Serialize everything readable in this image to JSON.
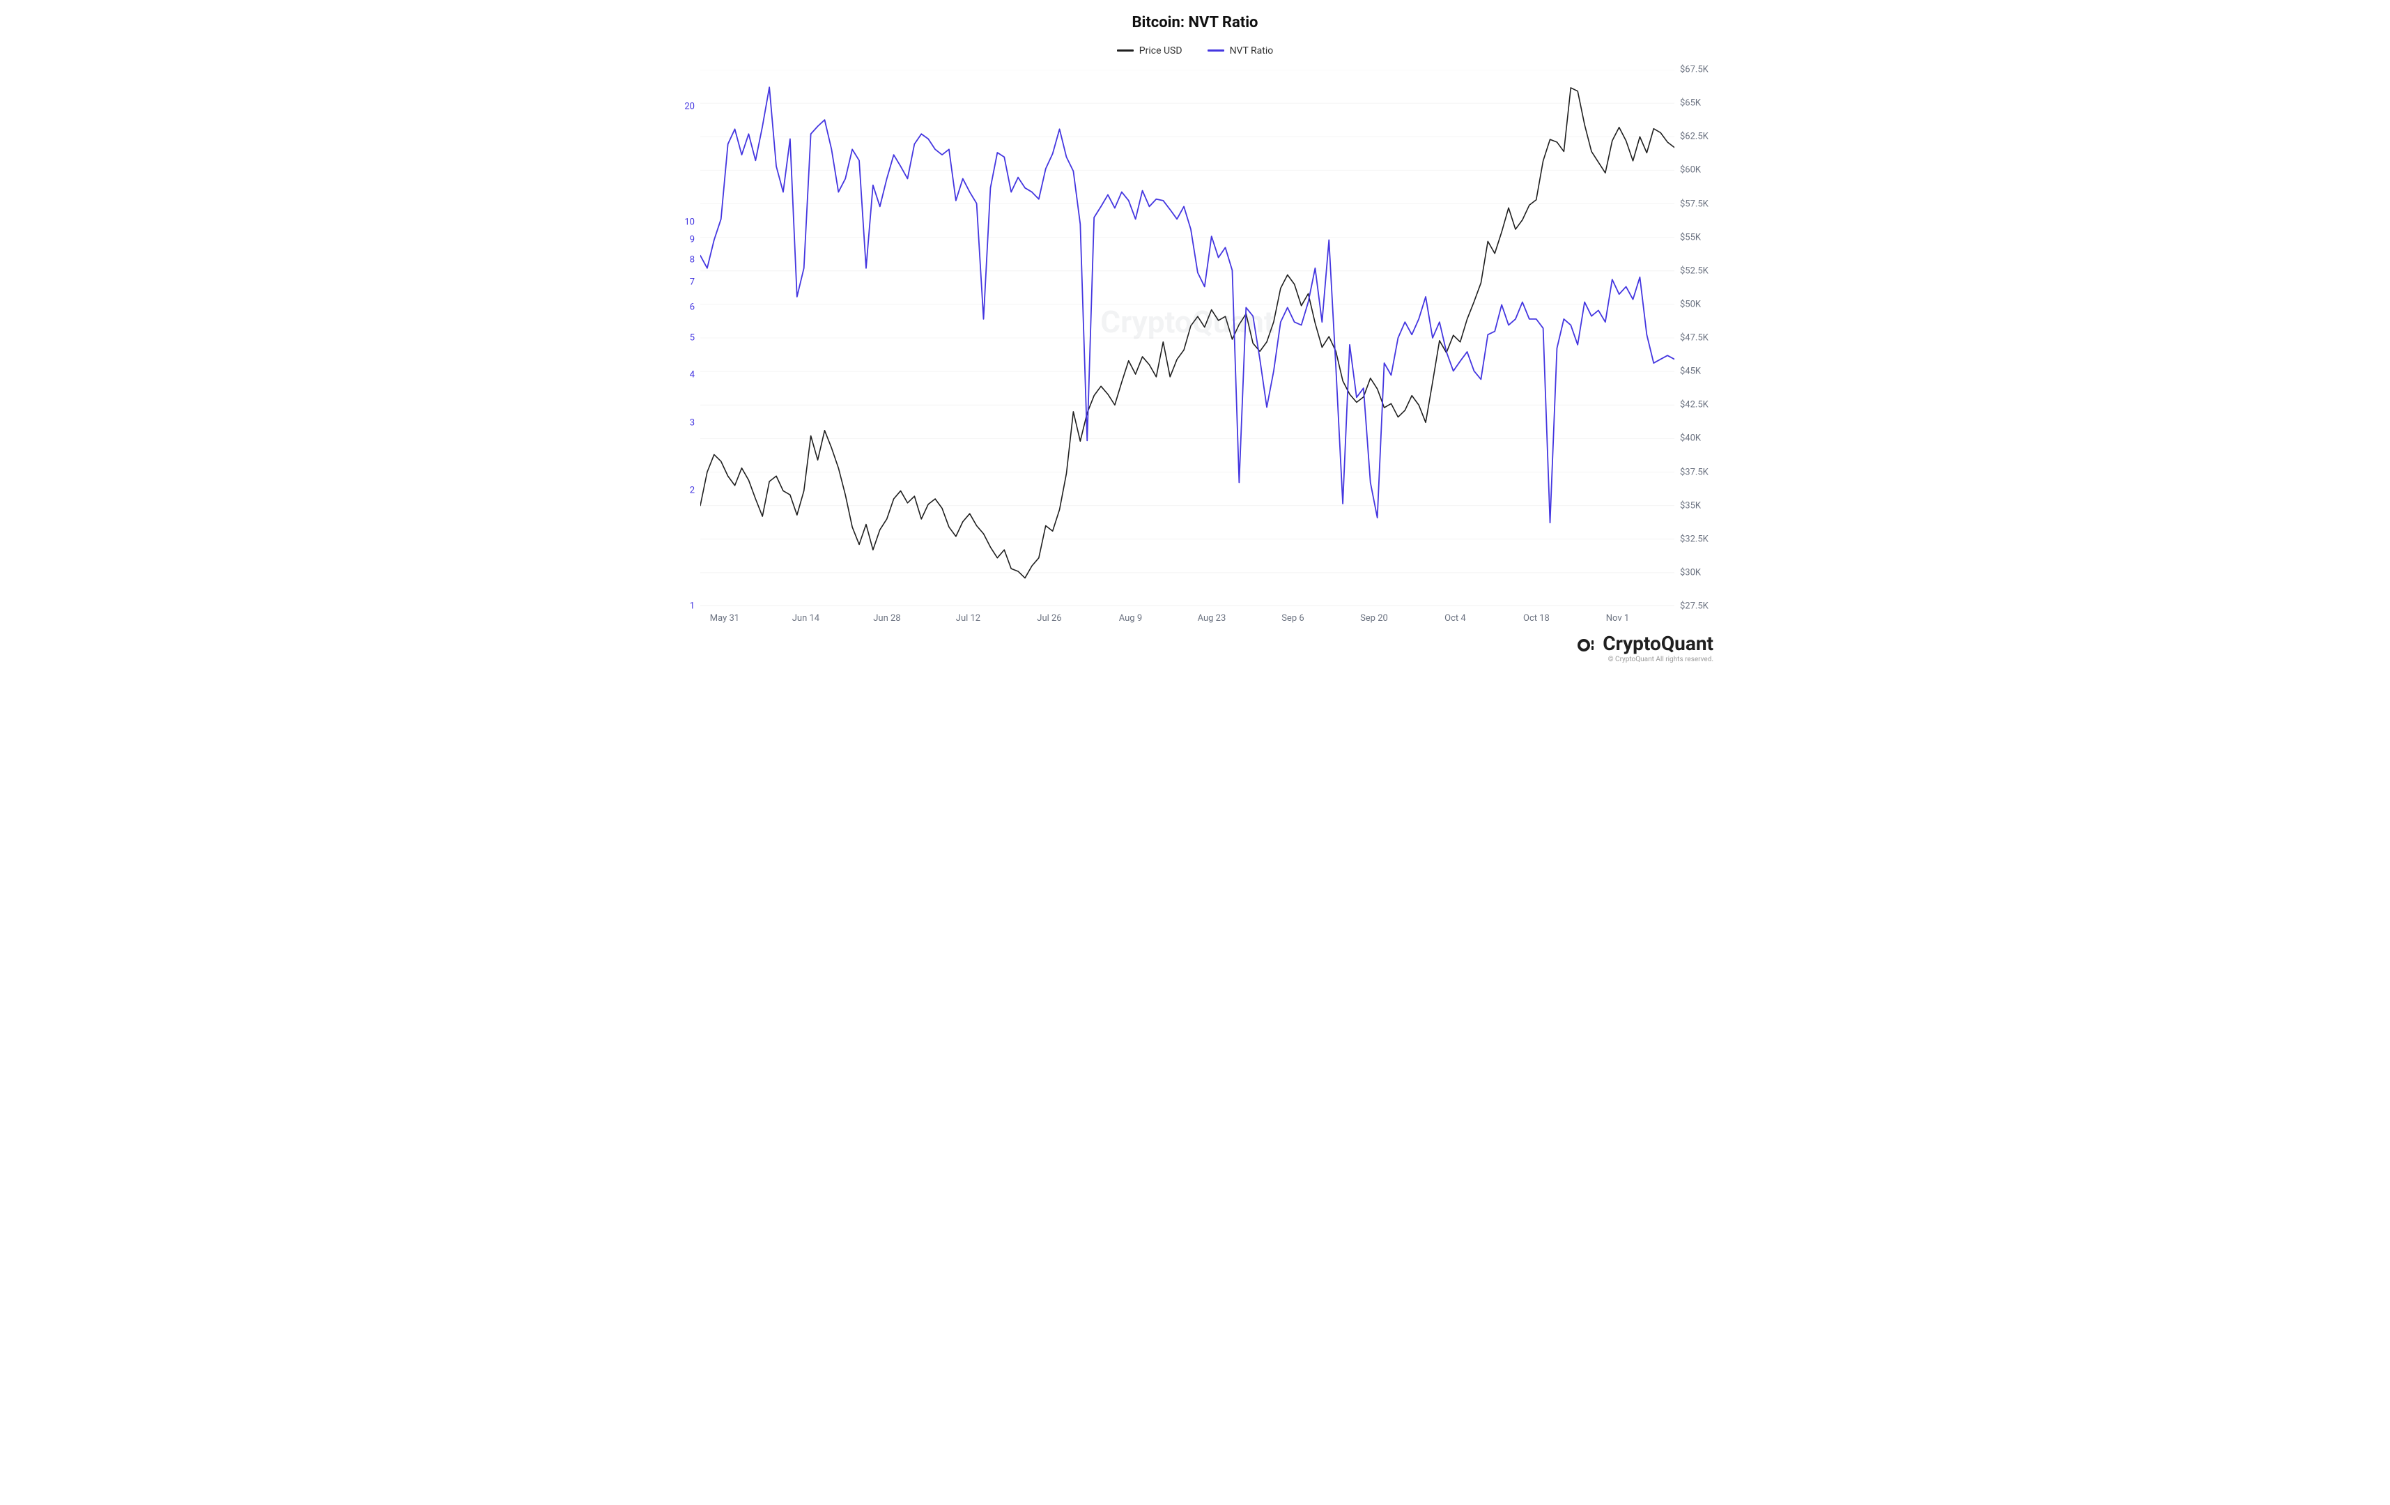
{
  "chart": {
    "title": "Bitcoin: NVT Ratio",
    "title_fontsize": 22,
    "background_color": "#ffffff",
    "grid_color": "#f4f4f4",
    "watermark_text": "CryptoQuant",
    "legend_fontsize": 14,
    "x_axis": {
      "labels": [
        "May 31",
        "Jun 14",
        "Jun 28",
        "Jul 12",
        "Jul 26",
        "Aug 9",
        "Aug 23",
        "Sep 6",
        "Sep 20",
        "Oct 4",
        "Oct 18",
        "Nov 1"
      ],
      "label_color": "#6b7280",
      "fontsize": 13
    },
    "y_left": {
      "scale": "log",
      "min": 1,
      "max": 25,
      "ticks": [
        1,
        2,
        3,
        4,
        5,
        6,
        7,
        8,
        9,
        10,
        20
      ],
      "tick_labels": [
        "1",
        "2",
        "3",
        "4",
        "5",
        "6",
        "7",
        "8",
        "9",
        "10",
        "20"
      ],
      "color": "#4436e0",
      "fontsize": 13
    },
    "y_right": {
      "scale": "linear",
      "min": 27500,
      "max": 67500,
      "ticks": [
        27500,
        30000,
        32500,
        35000,
        37500,
        40000,
        42500,
        45000,
        47500,
        50000,
        52500,
        55000,
        57500,
        60000,
        62500,
        65000,
        67500
      ],
      "tick_labels": [
        "$27.5K",
        "$30K",
        "$32.5K",
        "$35K",
        "$37.5K",
        "$40K",
        "$42.5K",
        "$45K",
        "$47.5K",
        "$50K",
        "$52.5K",
        "$55K",
        "$57.5K",
        "$60K",
        "$62.5K",
        "$65K",
        "$67.5K"
      ],
      "color": "#6b7280",
      "fontsize": 13
    },
    "series": [
      {
        "name": "Price USD",
        "axis": "right",
        "color": "#1f1f1f",
        "line_width": 1.6,
        "values": [
          35000,
          37500,
          38800,
          38300,
          37200,
          36500,
          37800,
          36900,
          35500,
          34200,
          36800,
          37200,
          36100,
          35800,
          34300,
          36100,
          40200,
          38400,
          40600,
          39300,
          37800,
          35800,
          33400,
          32100,
          33600,
          31700,
          33200,
          34000,
          35500,
          36100,
          35200,
          35700,
          34000,
          35100,
          35500,
          34800,
          33400,
          32700,
          33800,
          34400,
          33500,
          32900,
          31900,
          31100,
          31700,
          30300,
          30100,
          29600,
          30500,
          31100,
          33500,
          33100,
          34700,
          37400,
          42000,
          39800,
          41900,
          43200,
          43900,
          43300,
          42500,
          44200,
          45800,
          44800,
          46100,
          45500,
          44600,
          47200,
          44600,
          45900,
          46600,
          48400,
          49100,
          48300,
          49600,
          48800,
          49100,
          47400,
          48500,
          49300,
          47100,
          46500,
          47200,
          48700,
          51200,
          52200,
          51500,
          49900,
          50800,
          48600,
          46800,
          47600,
          46500,
          44300,
          43300,
          42700,
          43100,
          44500,
          43700,
          42300,
          42600,
          41600,
          42100,
          43200,
          42500,
          41200,
          44200,
          47300,
          46400,
          47700,
          47200,
          48900,
          50200,
          51600,
          54700,
          53800,
          55400,
          57200,
          55600,
          56300,
          57400,
          57800,
          60700,
          62300,
          62100,
          61400,
          66150,
          65900,
          63400,
          61400,
          60600,
          59800,
          62200,
          63200,
          62200,
          60700,
          62500,
          61300,
          63100,
          62800,
          62100,
          61700
        ]
      },
      {
        "name": "NVT Ratio",
        "axis": "left",
        "color": "#4436e0",
        "line_width": 1.8,
        "values": [
          8.2,
          7.6,
          9.0,
          10.2,
          16.0,
          17.5,
          15.0,
          17.0,
          14.5,
          17.8,
          22.5,
          14.0,
          12.0,
          16.5,
          6.4,
          7.6,
          17.0,
          17.8,
          18.5,
          15.5,
          12.0,
          13.0,
          15.5,
          14.5,
          7.6,
          12.5,
          11.0,
          13.0,
          15.0,
          14.0,
          13.0,
          16.0,
          17.0,
          16.5,
          15.5,
          15.0,
          15.5,
          11.4,
          13.0,
          12.0,
          11.2,
          5.6,
          12.3,
          15.2,
          14.8,
          12.0,
          13.1,
          12.3,
          12.0,
          11.5,
          13.8,
          15.1,
          17.5,
          14.8,
          13.6,
          9.9,
          2.7,
          10.3,
          11.0,
          11.8,
          10.9,
          12.0,
          11.4,
          10.2,
          12.1,
          11.0,
          11.5,
          11.4,
          10.8,
          10.2,
          11.0,
          9.6,
          7.4,
          6.8,
          9.2,
          8.1,
          8.6,
          7.5,
          2.1,
          6.0,
          5.7,
          4.4,
          3.3,
          4.1,
          5.5,
          6.0,
          5.5,
          5.4,
          6.2,
          7.6,
          5.5,
          9.0,
          4.2,
          1.85,
          4.8,
          3.5,
          3.7,
          2.1,
          1.7,
          4.3,
          4.0,
          5.0,
          5.5,
          5.1,
          5.6,
          6.4,
          5.0,
          5.5,
          4.6,
          4.1,
          4.35,
          4.6,
          4.1,
          3.9,
          5.1,
          5.2,
          6.1,
          5.4,
          5.6,
          6.2,
          5.6,
          5.6,
          5.3,
          1.65,
          4.7,
          5.6,
          5.4,
          4.8,
          6.2,
          5.7,
          5.9,
          5.5,
          7.1,
          6.5,
          6.8,
          6.3,
          7.2,
          5.1,
          4.3,
          4.4,
          4.5,
          4.4
        ]
      }
    ]
  },
  "brand": {
    "name": "CryptoQuant",
    "copyright": "© CryptoQuant All rights reserved.",
    "logo_color": "#1f1f1f"
  }
}
